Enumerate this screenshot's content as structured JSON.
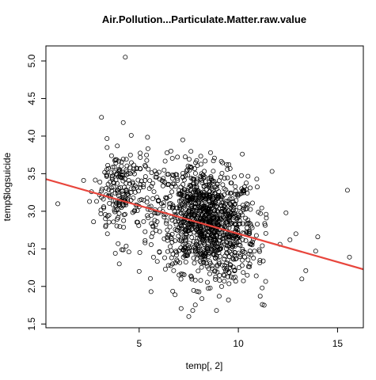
{
  "chart_data": {
    "type": "scatter",
    "title": "Air.Pollution...Particulate.Matter.raw.value",
    "xlabel": "temp[, 2]",
    "ylabel": "temp$logsuicide",
    "xlim": [
      0.3,
      16.3
    ],
    "ylim": [
      1.45,
      5.2
    ],
    "x_ticks": [
      5,
      10,
      15
    ],
    "x_tick_labels": [
      "5",
      "10",
      "15"
    ],
    "y_ticks": [
      1.5,
      2.0,
      2.5,
      3.0,
      3.5,
      4.0,
      4.5,
      5.0
    ],
    "y_tick_labels": [
      "1.5",
      "2.0",
      "2.5",
      "3.0",
      "3.5",
      "4.0",
      "4.5",
      "5.0"
    ],
    "grid": false,
    "point_marker": "open-circle",
    "point_color": "#000000",
    "fit_line": {
      "color": "#e8453c",
      "intercept": 3.45,
      "slope": -0.075
    },
    "points": [
      [
        4.3,
        5.05
      ],
      [
        3.1,
        4.25
      ],
      [
        4.2,
        4.18
      ],
      [
        7.2,
        3.95
      ],
      [
        4.6,
        4.01
      ],
      [
        3.9,
        3.87
      ],
      [
        6.6,
        3.8
      ],
      [
        8.6,
        3.78
      ],
      [
        10.2,
        3.76
      ],
      [
        11.7,
        3.53
      ],
      [
        12.4,
        2.98
      ],
      [
        15.5,
        3.28
      ],
      [
        15.6,
        2.39
      ],
      [
        0.9,
        3.1
      ],
      [
        2.2,
        3.41
      ],
      [
        2.5,
        3.13
      ],
      [
        2.6,
        3.26
      ],
      [
        3.0,
        3.22
      ],
      [
        3.1,
        3.27
      ],
      [
        3.3,
        2.9
      ],
      [
        3.4,
        2.7
      ],
      [
        13.4,
        2.21
      ],
      [
        13.9,
        2.47
      ],
      [
        14.0,
        2.66
      ],
      [
        13.2,
        2.1
      ],
      [
        12.6,
        2.62
      ],
      [
        12.9,
        2.7
      ],
      [
        11.2,
        1.98
      ],
      [
        11.1,
        1.87
      ],
      [
        11.3,
        1.75
      ],
      [
        7.5,
        1.6
      ],
      [
        7.7,
        1.68
      ],
      [
        5.6,
        1.93
      ],
      [
        8.9,
        1.68
      ],
      [
        9.5,
        1.82
      ],
      [
        10.7,
        2.78
      ],
      [
        11.4,
        2.96
      ],
      [
        10.6,
        3.31
      ],
      [
        9.3,
        3.44
      ],
      [
        12.1,
        2.56
      ],
      [
        10.9,
        2.14
      ],
      [
        9.9,
        2.37
      ],
      [
        6.0,
        3.52
      ],
      [
        3.8,
        2.44
      ],
      [
        4.0,
        2.3
      ],
      [
        5.0,
        2.2
      ],
      [
        5.3,
        2.58
      ]
    ],
    "cluster_seed": 12345
  }
}
